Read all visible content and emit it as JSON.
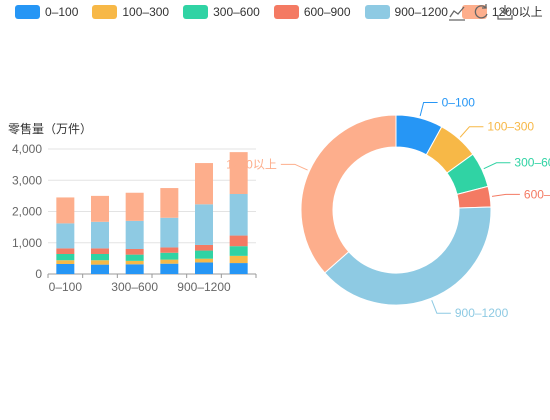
{
  "chart_data": [
    {
      "type": "bar",
      "stacked": true,
      "ylabel": "零售量（万件）",
      "ylim": [
        0,
        4000
      ],
      "yticks": [
        "0",
        "1,000",
        "2,000",
        "3,000",
        "4,000"
      ],
      "xtick_labels": [
        "0–100",
        "",
        "300–600",
        "",
        "900–1200",
        ""
      ],
      "grid": true,
      "series": [
        {
          "name": "0–100",
          "color": "#2696f5",
          "values": [
            320,
            300,
            310,
            330,
            370,
            350
          ]
        },
        {
          "name": "100–300",
          "color": "#f7b847",
          "values": [
            120,
            140,
            110,
            130,
            120,
            230
          ]
        },
        {
          "name": "300–600",
          "color": "#30d3a4",
          "values": [
            200,
            200,
            200,
            220,
            260,
            310
          ]
        },
        {
          "name": "600–900",
          "color": "#f47a63",
          "values": [
            180,
            180,
            180,
            170,
            180,
            340
          ]
        },
        {
          "name": "900–1200",
          "color": "#8ecae3",
          "values": [
            800,
            850,
            900,
            950,
            1300,
            1330
          ]
        },
        {
          "name": "1200以上",
          "color": "#fdae8c",
          "values": [
            830,
            830,
            900,
            950,
            1320,
            1340
          ]
        }
      ]
    },
    {
      "type": "pie",
      "donut": true,
      "labels": [
        "0–100",
        "100–300",
        "300–600",
        "600–900",
        "900–1200",
        "1200以上"
      ],
      "values": [
        8,
        7,
        6,
        3.5,
        39,
        36.5
      ],
      "colors": [
        "#2696f5",
        "#f7b847",
        "#30d3a4",
        "#f47a63",
        "#8ecae3",
        "#fdae8c"
      ]
    }
  ],
  "toolbox": [
    "line-chart-icon",
    "restore-icon",
    "save-image-icon"
  ]
}
